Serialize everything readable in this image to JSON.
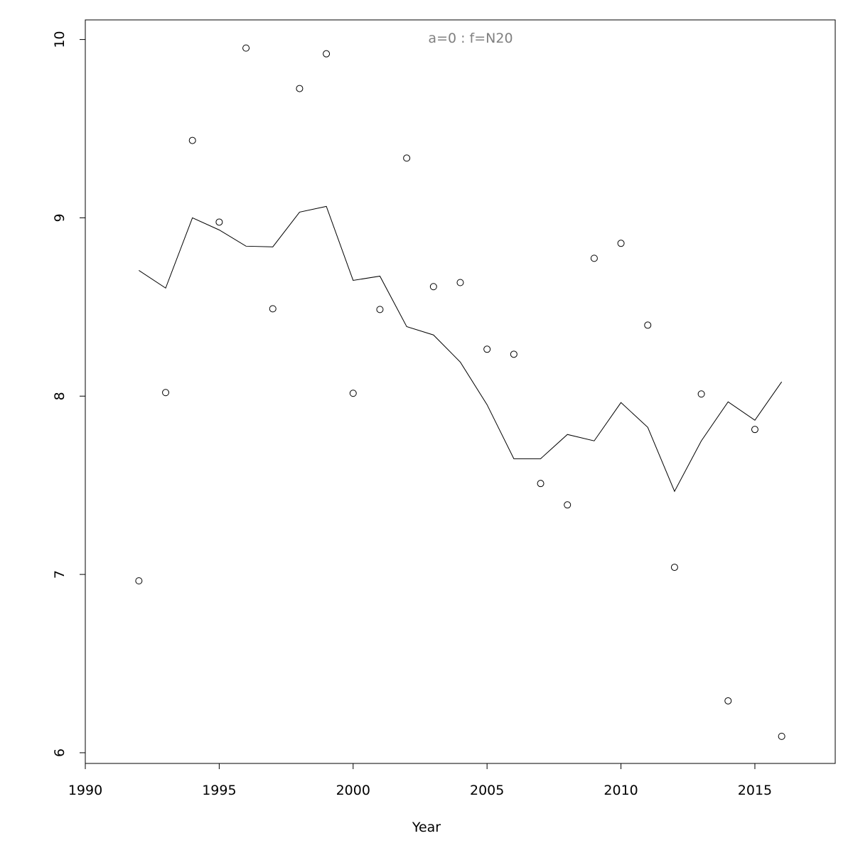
{
  "chart_data": {
    "type": "scatter",
    "title": "a=0  :  f=N20",
    "x_label": "Year",
    "x": [
      1992,
      1993,
      1994,
      1995,
      1996,
      1997,
      1998,
      1999,
      2000,
      2001,
      2002,
      2003,
      2004,
      2005,
      2006,
      2007,
      2008,
      2009,
      2010,
      2011,
      2012,
      2013,
      2014,
      2015,
      2016
    ],
    "series": [
      {
        "mode": "markers",
        "color": "#000000",
        "values": [
          6.964,
          8.02,
          9.434,
          8.976,
          9.952,
          8.49,
          9.725,
          9.92,
          8.016,
          8.486,
          9.335,
          8.614,
          8.637,
          8.263,
          8.235,
          7.51,
          7.39,
          8.773,
          8.857,
          8.398,
          7.04,
          8.012,
          6.291,
          7.813,
          6.092
        ]
      },
      {
        "mode": "line",
        "color": "#000000",
        "values": [
          8.705,
          8.606,
          9.0,
          8.932,
          8.841,
          8.837,
          9.032,
          9.064,
          8.649,
          8.673,
          8.39,
          8.343,
          8.191,
          7.952,
          7.649,
          7.649,
          7.785,
          7.749,
          7.964,
          7.825,
          7.466,
          7.749,
          7.968,
          7.865,
          8.08
        ]
      }
    ],
    "xlim": [
      1990,
      2018
    ],
    "xticks": [
      1990,
      1995,
      2000,
      2005,
      2010,
      2015
    ],
    "ylim": [
      5.94,
      10.11
    ],
    "yticks": [
      6,
      7,
      8,
      9,
      10
    ],
    "title_color": "#808080"
  }
}
